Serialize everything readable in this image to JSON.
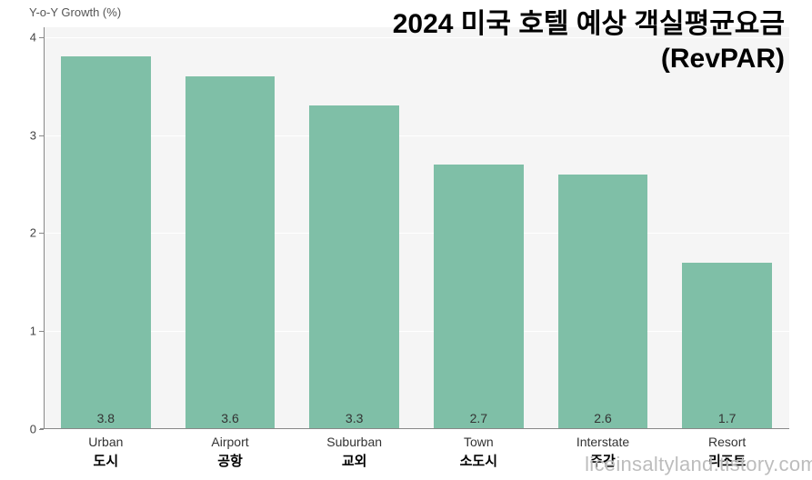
{
  "chart": {
    "type": "bar",
    "title_line1": "2024 미국 호텔 예상 객실평균요금",
    "title_line2": "(RevPAR)",
    "title_fontsize": 30,
    "title_fontweight": 800,
    "y_axis_label": "Y-o-Y Growth (%)",
    "y_axis_fontsize": 13,
    "ylim": [
      0,
      4.1
    ],
    "yticks": [
      0,
      1,
      2,
      3,
      4
    ],
    "background_color": "#ffffff",
    "plot_bg_color": "#f5f5f5",
    "grid_color": "#ffffff",
    "axis_color": "#888888",
    "bar_color": "#7fbfa7",
    "bar_width_ratio": 0.72,
    "label_fontsize_en": 14,
    "label_fontsize_ko": 15,
    "value_fontsize": 14,
    "value_color": "#333333",
    "categories": [
      {
        "en": "Urban",
        "ko": "도시",
        "value": 3.8,
        "value_label": "3.8"
      },
      {
        "en": "Airport",
        "ko": "공항",
        "value": 3.6,
        "value_label": "3.6"
      },
      {
        "en": "Suburban",
        "ko": "교외",
        "value": 3.3,
        "value_label": "3.3"
      },
      {
        "en": "Town",
        "ko": "소도시",
        "value": 2.7,
        "value_label": "2.7"
      },
      {
        "en": "Interstate",
        "ko": "주간",
        "value": 2.6,
        "value_label": "2.6"
      },
      {
        "en": "Resort",
        "ko": "리조트",
        "value": 1.7,
        "value_label": "1.7"
      }
    ],
    "watermark": "liceinsaltyland.tistory.com"
  }
}
